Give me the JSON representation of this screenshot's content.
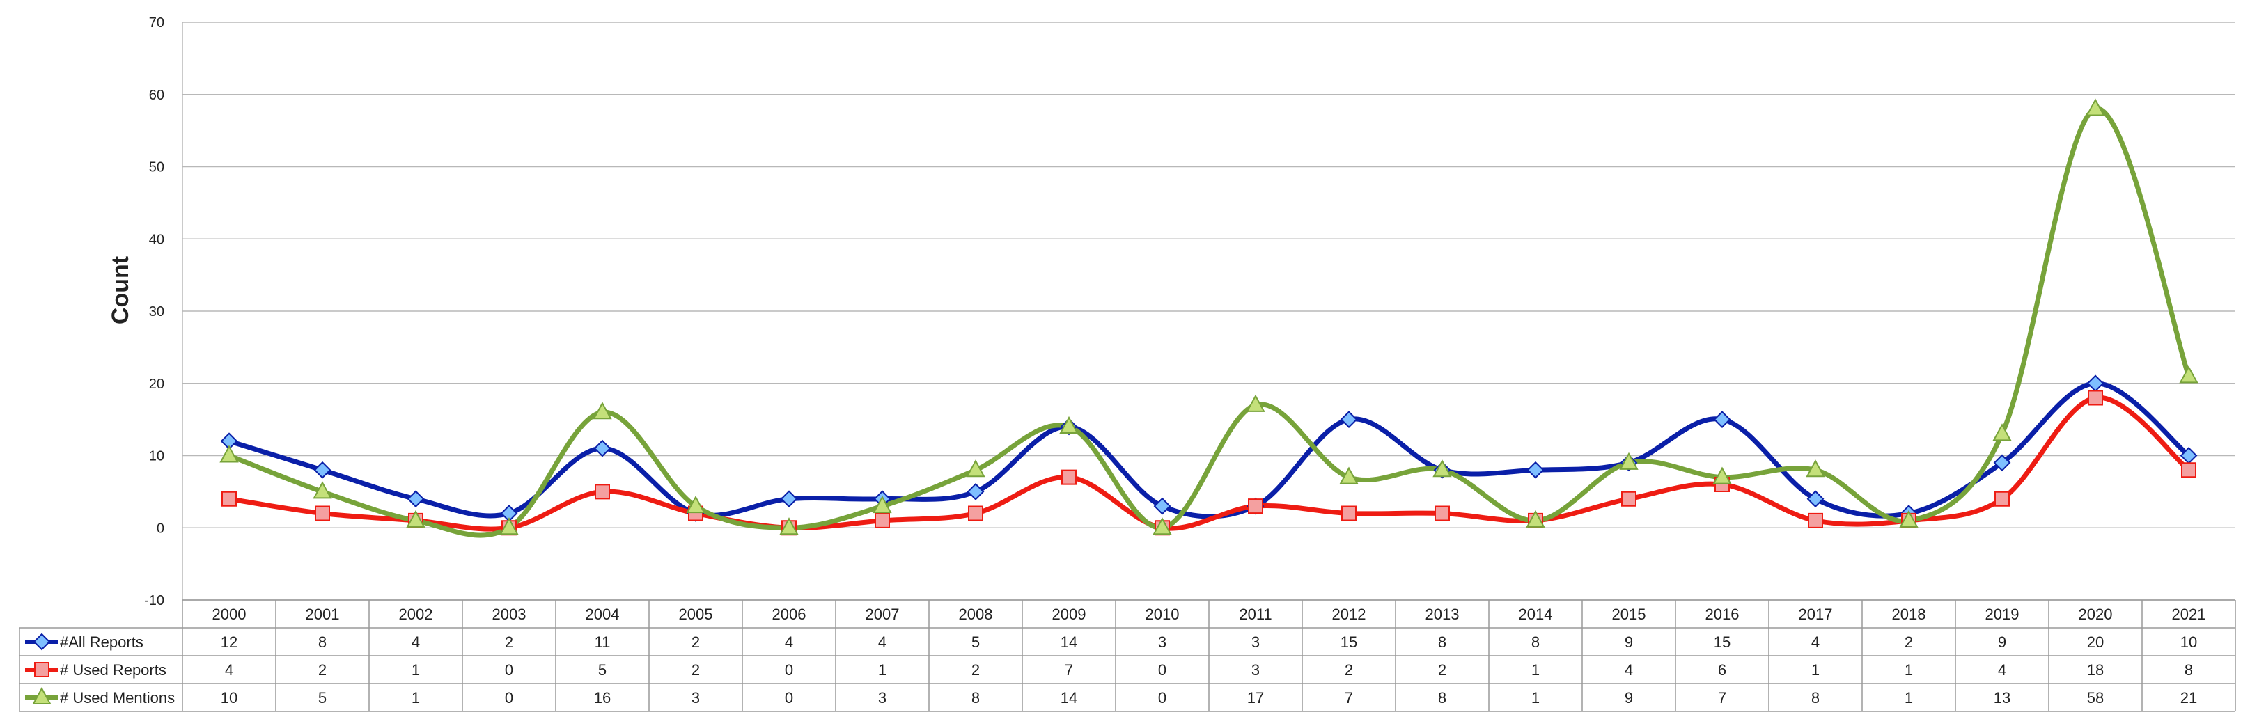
{
  "chart_data": {
    "type": "line",
    "title": "",
    "xlabel": "",
    "ylabel": "Count",
    "ylim": [
      -10,
      70
    ],
    "yticks": [
      70,
      60,
      50,
      40,
      30,
      20,
      10,
      0,
      -10
    ],
    "grid": true,
    "smooth": true,
    "legend": "data table rows below the plot",
    "categories": [
      "2000",
      "2001",
      "2002",
      "2003",
      "2004",
      "2005",
      "2006",
      "2007",
      "2008",
      "2009",
      "2010",
      "2011",
      "2012",
      "2013",
      "2014",
      "2015",
      "2016",
      "2017",
      "2018",
      "2019",
      "2020",
      "2021"
    ],
    "series": [
      {
        "name": "#All Reports",
        "color": "#0a1fa8",
        "marker": "diamond",
        "marker_fill": "#7fbfff",
        "values": [
          12,
          8,
          4,
          2,
          11,
          2,
          4,
          4,
          5,
          14,
          3,
          3,
          15,
          8,
          8,
          9,
          15,
          4,
          2,
          9,
          20,
          10
        ]
      },
      {
        "name": "# Used Reports",
        "color": "#ee1c13",
        "marker": "square",
        "marker_fill": "#f4a0a0",
        "values": [
          4,
          2,
          1,
          0,
          5,
          2,
          0,
          1,
          2,
          7,
          0,
          3,
          2,
          2,
          1,
          4,
          6,
          1,
          1,
          4,
          18,
          8
        ]
      },
      {
        "name": "# Used Mentions",
        "color": "#77a33a",
        "marker": "triangle",
        "marker_fill": "#c4e07a",
        "values": [
          10,
          5,
          1,
          0,
          16,
          3,
          0,
          3,
          8,
          14,
          0,
          17,
          7,
          8,
          1,
          9,
          7,
          8,
          1,
          13,
          58,
          21
        ]
      }
    ]
  }
}
